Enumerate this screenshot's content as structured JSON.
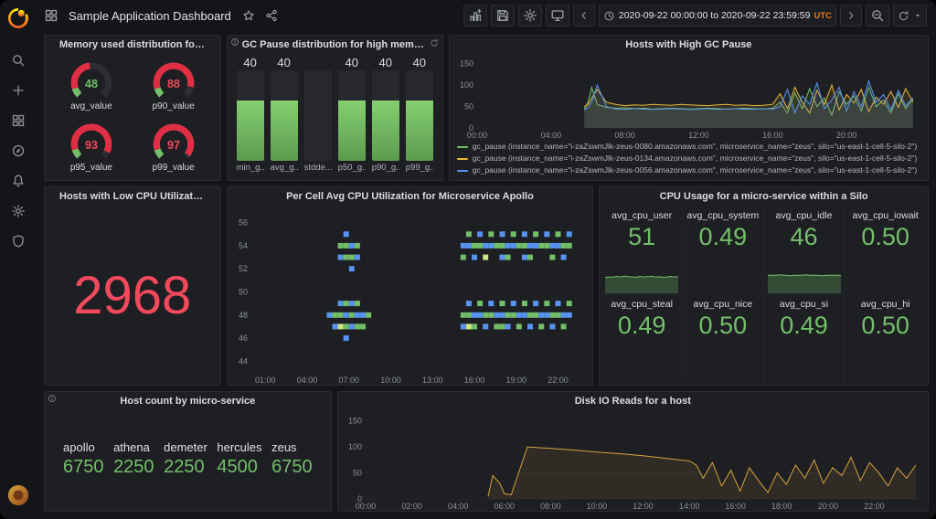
{
  "colors": {
    "bg": "#141519",
    "panel": "#1d1f23",
    "border": "#292b30",
    "green": "#73bf69",
    "red": "#e02f44",
    "stat_red": "#f2495c",
    "yellow": "#eab839",
    "blue": "#5794f2",
    "brand_orange": "#eb7b18",
    "heat_light": "#c8e97e",
    "text": "#d8d9da"
  },
  "sidebar": {
    "items": [
      {
        "name": "search",
        "icon": "search"
      },
      {
        "name": "create",
        "icon": "plus"
      },
      {
        "name": "dashboards",
        "icon": "grid"
      },
      {
        "name": "explore",
        "icon": "compass"
      },
      {
        "name": "alerting",
        "icon": "bell"
      },
      {
        "name": "configuration",
        "icon": "gear"
      },
      {
        "name": "server-admin",
        "icon": "shield"
      }
    ]
  },
  "header": {
    "title": "Sample Application Dashboard",
    "time_range": "2020-09-22 00:00:00 to 2020-09-22 23:59:59",
    "timezone": "UTC"
  },
  "panels": {
    "memory": {
      "title": "Memory used distribution for a Micro-serv..."
    },
    "gc_bars": {
      "title": "GC Pause distribution for high memory utilization h..."
    },
    "gc_graph": {
      "title": "Hosts with High GC Pause"
    },
    "low_cpu": {
      "title": "Hosts with Low CPU Utilization in Micros...",
      "value": "2968"
    },
    "heatmap": {
      "title": "Per Cell Avg CPU Utilization for Microservice Apollo"
    },
    "cpu_stats": {
      "title": "CPU Usage for a micro-service within a Silo",
      "stats": [
        {
          "label": "avg_cpu_user",
          "value": "51",
          "spark": [
            62,
            64,
            63,
            66,
            64,
            67,
            65,
            64,
            63,
            66,
            64,
            65,
            67,
            64,
            65,
            63,
            64,
            66,
            64,
            65
          ]
        },
        {
          "label": "avg_cpu_system",
          "value": "0.49",
          "spark": null
        },
        {
          "label": "avg_cpu_idle",
          "value": "46",
          "spark": [
            70,
            71,
            70,
            72,
            71,
            70,
            69,
            71,
            70,
            71,
            72,
            70,
            71,
            70,
            69,
            70,
            71,
            70,
            71,
            70
          ]
        },
        {
          "label": "avg_cpu_iowait",
          "value": "0.50",
          "spark": null
        },
        {
          "label": "avg_cpu_steal",
          "value": "0.49",
          "spark": null
        },
        {
          "label": "avg_cpu_nice",
          "value": "0.50",
          "spark": null
        },
        {
          "label": "avg_cpu_si",
          "value": "0.49",
          "spark": null
        },
        {
          "label": "avg_cpu_hi",
          "value": "0.50",
          "spark": null
        }
      ]
    },
    "host_count": {
      "title": "Host count by micro-service",
      "hosts": [
        {
          "name": "apollo",
          "value": "6750"
        },
        {
          "name": "athena",
          "value": "2250"
        },
        {
          "name": "demeter",
          "value": "2250"
        },
        {
          "name": "hercules",
          "value": "4500"
        },
        {
          "name": "zeus",
          "value": "6750"
        }
      ]
    },
    "disk_io": {
      "title": "Disk IO Reads for a host"
    }
  },
  "chart_data": [
    {
      "id": "memory_gauges",
      "type": "gauge",
      "min": 0,
      "max": 100,
      "gauges": [
        {
          "label": "avg_value",
          "value": 48,
          "color": "#73bf69"
        },
        {
          "label": "p90_value",
          "value": 88,
          "color": "#f2495c"
        },
        {
          "label": "p95_value",
          "value": 93,
          "color": "#f2495c"
        },
        {
          "label": "p99_value",
          "value": 97,
          "color": "#f2495c"
        }
      ]
    },
    {
      "id": "gc_bars",
      "type": "bar",
      "max": 60,
      "bars": [
        {
          "label": "min_g...",
          "value": 40,
          "text": "40"
        },
        {
          "label": "avg_g...",
          "value": 40,
          "text": "40"
        },
        {
          "label": "stdde...",
          "value": 0,
          "text": ""
        },
        {
          "label": "p50_g...",
          "value": 40,
          "text": "40"
        },
        {
          "label": "p90_g...",
          "value": 40,
          "text": "40"
        },
        {
          "label": "p99_g...",
          "value": 40,
          "text": "40"
        }
      ]
    },
    {
      "id": "gc_graph",
      "type": "line",
      "title": "Hosts with High GC Pause",
      "fill": true,
      "xlim": [
        0,
        24
      ],
      "ylim": [
        0,
        160
      ],
      "x_ticks": [
        0,
        4,
        8,
        12,
        16,
        20
      ],
      "x_tick_labels": [
        "00:00",
        "04:00",
        "08:00",
        "12:00",
        "16:00",
        "20:00"
      ],
      "y_ticks": [
        0,
        50,
        100,
        150
      ],
      "x": [
        5.8,
        6,
        6.2,
        6.5,
        7,
        7.5,
        8,
        8.5,
        9,
        9.5,
        10,
        10.5,
        11,
        11.5,
        12,
        12.5,
        13,
        13.5,
        14,
        14.5,
        15,
        15.5,
        16,
        16.4,
        16.8,
        17.2,
        17.6,
        18,
        18.4,
        18.8,
        19.2,
        19.6,
        20,
        20.4,
        20.8,
        21.2,
        21.6,
        22,
        22.4,
        22.8,
        23.2,
        23.6
      ],
      "series": [
        {
          "name": "gc_pause (instance_name=\"i-zaZswmJlk-zeus-0080.amazonaws.com\", microservice_name=\"zeus\", silo=\"us-east-1-cell-5-silo-2\")",
          "color": "#73bf69",
          "y": [
            44,
            60,
            95,
            55,
            48,
            46,
            47,
            45,
            46,
            44,
            45,
            46,
            45,
            44,
            45,
            46,
            45,
            44,
            45,
            46,
            45,
            44,
            46,
            60,
            35,
            82,
            45,
            92,
            50,
            70,
            30,
            85,
            55,
            75,
            40,
            95,
            50,
            65,
            35,
            80,
            45,
            68
          ]
        },
        {
          "name": "gc_pause (instance_name=\"i-zaZswmJlk-zeus-0134.amazonaws.com\", microservice_name=\"zeus\", silo=\"us-east-1-cell-5-silo-2\")",
          "color": "#eab839",
          "y": [
            50,
            55,
            70,
            90,
            60,
            55,
            52,
            54,
            53,
            55,
            54,
            53,
            55,
            54,
            53,
            52,
            54,
            55,
            53,
            54,
            52,
            53,
            55,
            80,
            45,
            95,
            60,
            35,
            88,
            55,
            100,
            42,
            78,
            58,
            90,
            38,
            72,
            55,
            85,
            48,
            92,
            60
          ]
        },
        {
          "name": "gc_pause (instance_name=\"i-zaZswmJlk-zeus-0056.amazonaws.com\", microservice_name=\"zeus\", silo=\"us-east-1-cell-5-silo-2\")",
          "color": "#5794f2",
          "y": [
            42,
            48,
            60,
            100,
            50,
            44,
            43,
            45,
            44,
            43,
            44,
            45,
            44,
            43,
            44,
            45,
            43,
            44,
            45,
            43,
            44,
            45,
            44,
            50,
            90,
            35,
            75,
            55,
            105,
            45,
            65,
            95,
            40,
            85,
            50,
            110,
            60,
            78,
            42,
            88,
            52,
            70
          ]
        }
      ]
    },
    {
      "id": "heatmap",
      "type": "heatmap",
      "title": "Per Cell Avg CPU Utilization for Microservice Apollo",
      "xlim": [
        0,
        24
      ],
      "ylim": [
        43,
        57
      ],
      "x_ticks": [
        1,
        4,
        7,
        10,
        13,
        16,
        19,
        22
      ],
      "x_tick_labels": [
        "01:00",
        "04:00",
        "07:00",
        "10:00",
        "13:00",
        "16:00",
        "19:00",
        "22:00"
      ],
      "y_ticks": [
        44,
        46,
        48,
        50,
        52,
        54,
        56
      ],
      "palette": [
        "#5794f2",
        "#73bf69",
        "#c8e97e"
      ],
      "cells": [
        [
          6.4,
          54,
          1
        ],
        [
          6.4,
          53,
          0
        ],
        [
          6.8,
          55,
          0
        ],
        [
          6.8,
          54,
          1
        ],
        [
          6.8,
          53,
          1
        ],
        [
          7.2,
          54,
          0
        ],
        [
          7.2,
          53,
          1
        ],
        [
          7.2,
          52,
          0
        ],
        [
          7.6,
          54,
          1
        ],
        [
          7.6,
          53,
          0
        ],
        [
          5.6,
          48,
          0
        ],
        [
          6,
          48,
          1
        ],
        [
          6,
          47,
          0
        ],
        [
          6.4,
          49,
          0
        ],
        [
          6.4,
          48,
          1
        ],
        [
          6.4,
          47,
          2
        ],
        [
          6.8,
          49,
          1
        ],
        [
          6.8,
          48,
          0
        ],
        [
          6.8,
          47,
          1
        ],
        [
          6.8,
          46,
          0
        ],
        [
          7.2,
          49,
          0
        ],
        [
          7.2,
          48,
          1
        ],
        [
          7.2,
          47,
          0
        ],
        [
          7.6,
          49,
          1
        ],
        [
          7.6,
          48,
          0
        ],
        [
          7.6,
          47,
          1
        ],
        [
          8,
          48,
          0
        ],
        [
          8,
          47,
          1
        ],
        [
          8.4,
          48,
          1
        ],
        [
          15.2,
          54,
          0
        ],
        [
          15.2,
          53,
          1
        ],
        [
          15.6,
          55,
          1
        ],
        [
          15.6,
          54,
          0
        ],
        [
          16,
          54,
          1
        ],
        [
          16,
          53,
          0
        ],
        [
          16.4,
          55,
          0
        ],
        [
          16.4,
          54,
          1
        ],
        [
          16.8,
          54,
          0
        ],
        [
          16.8,
          53,
          2
        ],
        [
          17.2,
          55,
          1
        ],
        [
          17.2,
          54,
          0
        ],
        [
          17.6,
          54,
          1
        ],
        [
          18,
          55,
          0
        ],
        [
          18,
          54,
          1
        ],
        [
          18,
          53,
          0
        ],
        [
          18.4,
          54,
          0
        ],
        [
          18.4,
          53,
          1
        ],
        [
          18.8,
          55,
          1
        ],
        [
          18.8,
          54,
          0
        ],
        [
          19.2,
          54,
          1
        ],
        [
          19.6,
          55,
          0
        ],
        [
          19.6,
          54,
          1
        ],
        [
          19.6,
          53,
          0
        ],
        [
          20,
          54,
          0
        ],
        [
          20,
          53,
          1
        ],
        [
          20.4,
          55,
          1
        ],
        [
          20.4,
          54,
          0
        ],
        [
          20.8,
          54,
          1
        ],
        [
          21.2,
          55,
          0
        ],
        [
          21.2,
          54,
          1
        ],
        [
          21.6,
          54,
          0
        ],
        [
          21.6,
          53,
          1
        ],
        [
          22,
          55,
          1
        ],
        [
          22,
          54,
          0
        ],
        [
          22.4,
          54,
          1
        ],
        [
          22.4,
          53,
          0
        ],
        [
          22.8,
          55,
          0
        ],
        [
          22.8,
          54,
          1
        ],
        [
          15.2,
          48,
          1
        ],
        [
          15.2,
          47,
          0
        ],
        [
          15.6,
          49,
          0
        ],
        [
          15.6,
          48,
          1
        ],
        [
          15.6,
          47,
          2
        ],
        [
          16,
          48,
          0
        ],
        [
          16,
          47,
          1
        ],
        [
          16.4,
          49,
          1
        ],
        [
          16.4,
          48,
          0
        ],
        [
          16.8,
          48,
          1
        ],
        [
          16.8,
          47,
          0
        ],
        [
          17.2,
          49,
          0
        ],
        [
          17.2,
          48,
          1
        ],
        [
          17.6,
          48,
          0
        ],
        [
          17.6,
          47,
          1
        ],
        [
          18,
          49,
          1
        ],
        [
          18,
          48,
          0
        ],
        [
          18,
          47,
          1
        ],
        [
          18.4,
          48,
          1
        ],
        [
          18.4,
          47,
          0
        ],
        [
          18.8,
          49,
          0
        ],
        [
          18.8,
          48,
          1
        ],
        [
          19.2,
          48,
          0
        ],
        [
          19.2,
          47,
          1
        ],
        [
          19.6,
          49,
          1
        ],
        [
          19.6,
          48,
          0
        ],
        [
          20,
          48,
          1
        ],
        [
          20,
          47,
          0
        ],
        [
          20.4,
          49,
          0
        ],
        [
          20.4,
          48,
          1
        ],
        [
          20.8,
          48,
          0
        ],
        [
          20.8,
          47,
          1
        ],
        [
          21.2,
          49,
          1
        ],
        [
          21.2,
          48,
          0
        ],
        [
          21.6,
          48,
          1
        ],
        [
          21.6,
          47,
          0
        ],
        [
          22,
          49,
          0
        ],
        [
          22,
          48,
          1
        ],
        [
          22.4,
          48,
          0
        ],
        [
          22.4,
          47,
          1
        ],
        [
          22.8,
          49,
          1
        ],
        [
          22.8,
          48,
          0
        ]
      ]
    },
    {
      "id": "disk_io",
      "type": "line",
      "title": "Disk IO Reads for a host",
      "fill": true,
      "xlim": [
        0,
        24
      ],
      "ylim": [
        0,
        160
      ],
      "x_ticks": [
        0,
        2,
        4,
        6,
        8,
        10,
        12,
        14,
        16,
        18,
        20,
        22
      ],
      "x_tick_labels": [
        "00:00",
        "02:00",
        "04:00",
        "06:00",
        "08:00",
        "10:00",
        "12:00",
        "14:00",
        "16:00",
        "18:00",
        "20:00",
        "22:00"
      ],
      "y_ticks": [
        0,
        50,
        100,
        150
      ],
      "x": [
        5.3,
        5.5,
        5.8,
        6,
        6.3,
        7,
        8,
        9,
        10,
        11,
        12,
        13,
        14,
        14.3,
        14.6,
        15,
        15.4,
        15.8,
        16.2,
        16.6,
        17,
        17.4,
        17.8,
        18.2,
        18.6,
        19,
        19.4,
        19.8,
        20.2,
        20.6,
        21,
        21.4,
        21.8,
        22.2,
        22.6,
        23,
        23.4,
        23.8
      ],
      "series": [
        {
          "name": "disk_io_reads",
          "color": "#d9a23a",
          "y": [
            5,
            45,
            30,
            10,
            8,
            100,
            97,
            94,
            90,
            87,
            83,
            78,
            73,
            65,
            40,
            70,
            25,
            55,
            15,
            60,
            35,
            12,
            50,
            28,
            65,
            40,
            75,
            30,
            60,
            45,
            80,
            35,
            70,
            50,
            25,
            60,
            40,
            65
          ]
        }
      ]
    }
  ]
}
